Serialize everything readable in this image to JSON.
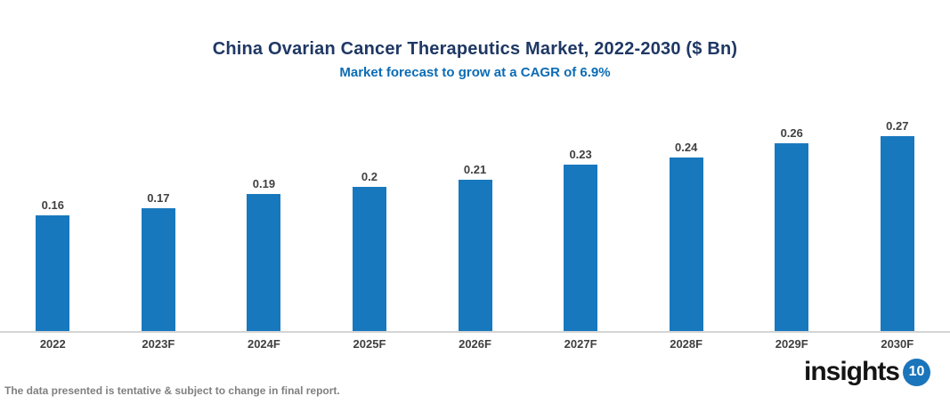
{
  "chart": {
    "title": "China Ovarian Cancer Therapeutics Market, 2022-2030 ($ Bn)",
    "subtitle": "Market forecast to grow at a CAGR of 6.9%",
    "title_color": "#1f3864",
    "subtitle_color": "#0c6cb5"
  },
  "chart_data": {
    "type": "bar",
    "categories": [
      "2022",
      "2023F",
      "2024F",
      "2025F",
      "2026F",
      "2027F",
      "2028F",
      "2029F",
      "2030F"
    ],
    "values": [
      0.16,
      0.17,
      0.19,
      0.2,
      0.21,
      0.23,
      0.24,
      0.26,
      0.27
    ],
    "title": "China Ovarian Cancer Therapeutics Market, 2022-2030 ($ Bn)",
    "subtitle": "Market forecast to grow at a CAGR of 6.9%",
    "xlabel": "",
    "ylabel": "",
    "ylim": [
      0,
      0.3
    ],
    "grid": false,
    "legend": false,
    "bar_color": "#1878be",
    "value_label_color": "#404040",
    "axis_line_color": "#d4d4d4"
  },
  "footer": {
    "disclaimer": "The data presented is tentative & subject to change in final report.",
    "logo_text": "insights",
    "logo_number": "10",
    "logo_circle_color": "#1b75bb"
  }
}
